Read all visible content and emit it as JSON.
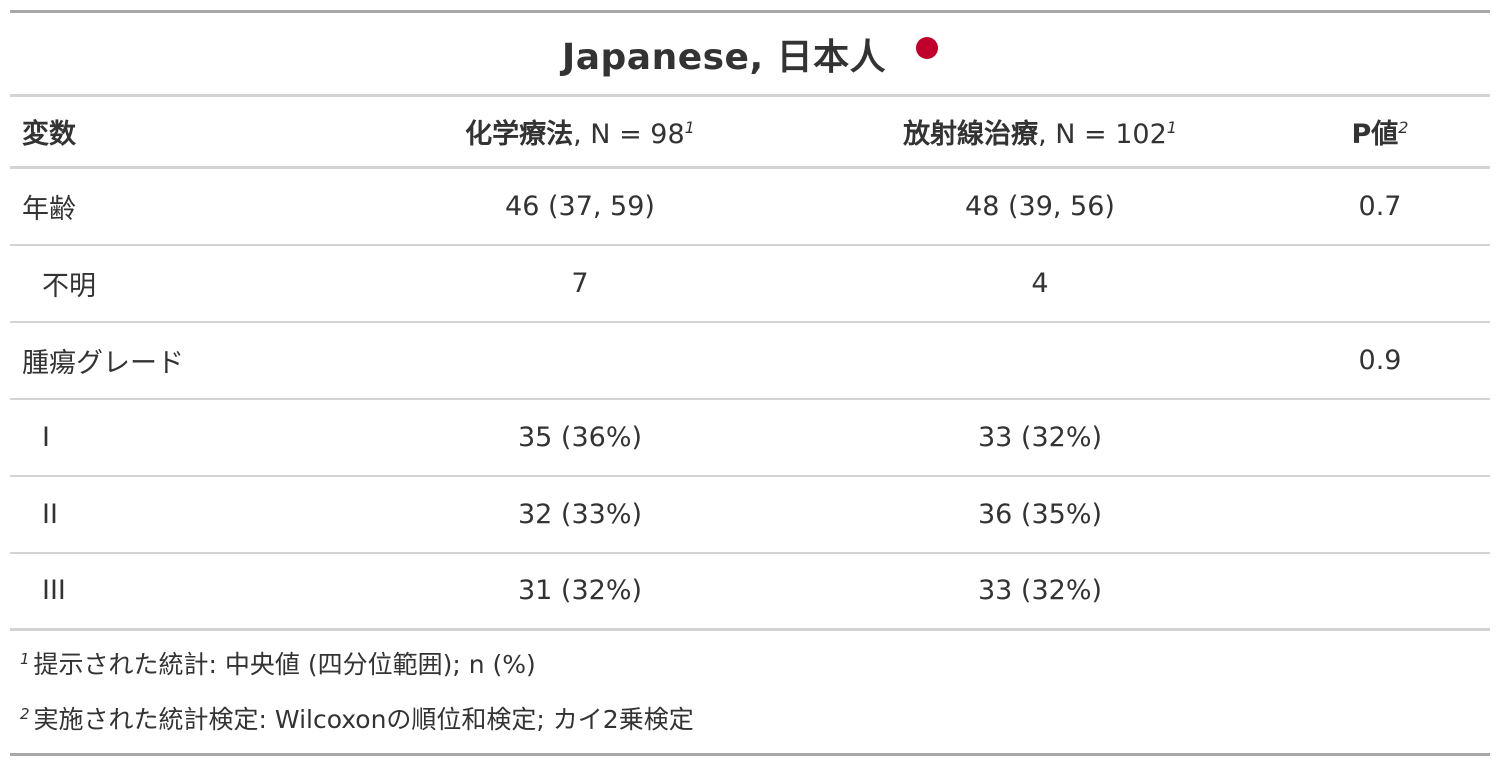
{
  "title": "Japanese, 日本人",
  "flag_color": "#c0002a",
  "header": {
    "variable": "変数",
    "chemo_label": "化学療法",
    "chemo_n": ", N = 98",
    "chemo_fn": "1",
    "radio_label": "放射線治療",
    "radio_n": ", N = 102",
    "radio_fn": "1",
    "pvalue_label": "P値",
    "pvalue_fn": "2"
  },
  "rows": [
    {
      "label": "年齢",
      "chemo": "46 (37, 59)",
      "radio": "48 (39, 56)",
      "p": "0.7"
    },
    {
      "label": "不明",
      "chemo": "7",
      "radio": "4",
      "p": ""
    },
    {
      "label": "腫瘍グレード",
      "chemo": "",
      "radio": "",
      "p": "0.9"
    },
    {
      "label": "I",
      "chemo": "35 (36%)",
      "radio": "33 (32%)",
      "p": ""
    },
    {
      "label": "II",
      "chemo": "32 (33%)",
      "radio": "36 (35%)",
      "p": ""
    },
    {
      "label": "III",
      "chemo": "31 (32%)",
      "radio": "33 (32%)",
      "p": ""
    }
  ],
  "footnotes": [
    {
      "mark": "1",
      "text": "提示された統計: 中央値 (四分位範囲); n (%)"
    },
    {
      "mark": "2",
      "text": "実施された統計検定: Wilcoxonの順位和検定; カイ2乗検定"
    }
  ]
}
